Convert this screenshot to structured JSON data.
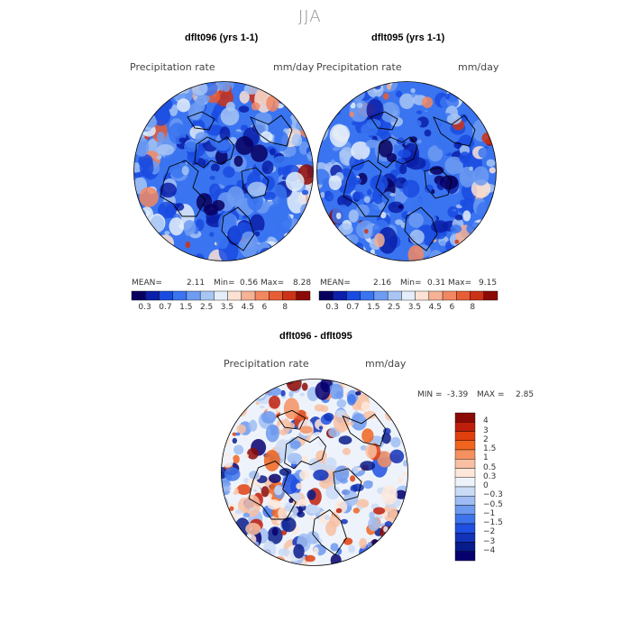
{
  "main_title": "JJA",
  "palette_abs": [
    "#08005e",
    "#0b1fa8",
    "#1a4be0",
    "#3a74f0",
    "#6e9cf2",
    "#a8c6f4",
    "#e4eefa",
    "#fbe2d2",
    "#f6b294",
    "#f28762",
    "#e75d35",
    "#cc3216",
    "#8c0a06"
  ],
  "palette_diff": [
    "#8c0a06",
    "#c01e0c",
    "#e0400e",
    "#f0641e",
    "#f59060",
    "#f8bfa2",
    "#fde7da",
    "#eef3fb",
    "#c9dbf6",
    "#9fbdf2",
    "#6d99ef",
    "#3e74eb",
    "#1f4fe0",
    "#1232b8",
    "#081b8a",
    "#06006e"
  ],
  "panels": {
    "p1": {
      "title": "dflt096 (yrs 1-1)",
      "var": "Precipitation rate",
      "units": "mm/day",
      "mean_label": "MEAN=",
      "mean": "2.11",
      "min_label": "Min=",
      "min": "0.56",
      "max_label": "Max=",
      "max": "8.28"
    },
    "p2": {
      "title": "dflt095 (yrs 1-1)",
      "var": "Precipitation rate",
      "units": "mm/day",
      "mean_label": "MEAN=",
      "mean": "2.16",
      "min_label": "Min=",
      "min": "0.31",
      "max_label": "Max=",
      "max": "9.15"
    },
    "p3": {
      "title": "dflt096 - dflt095",
      "var": "Precipitation rate",
      "units": "mm/day",
      "min_label": "MIN =",
      "min": "-3.39",
      "max_label": "MAX =",
      "max": "2.85"
    }
  },
  "colorbar_ticks": [
    "0.3",
    "0.7",
    "1.5",
    "2.5",
    "3.5",
    "4.5",
    "6",
    "8"
  ],
  "diff_ticks": [
    "4",
    "3",
    "2",
    "1.5",
    "1",
    "0.5",
    "0.3",
    "0",
    "−0.3",
    "−0.5",
    "−1",
    "−1.5",
    "−2",
    "−3",
    "−4"
  ]
}
